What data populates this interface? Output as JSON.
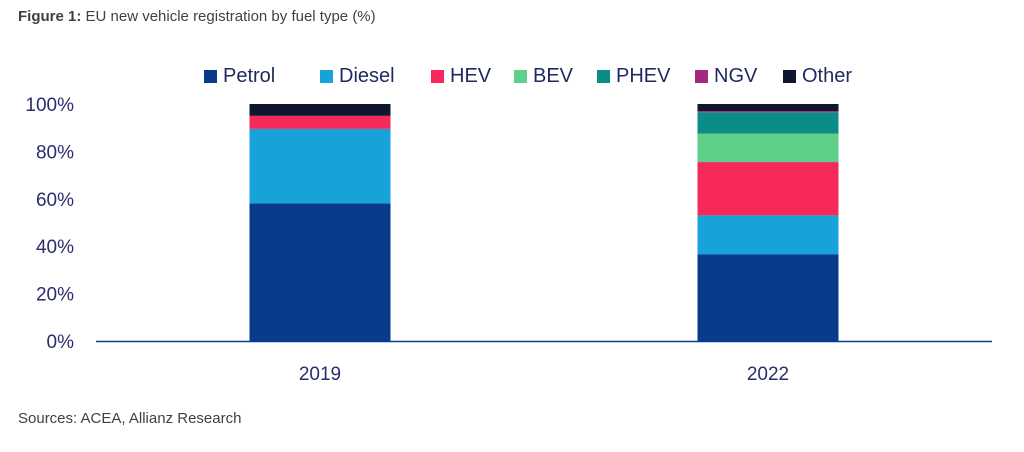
{
  "figure": {
    "label": "Figure 1:",
    "title": "EU new vehicle registration by fuel type (%)"
  },
  "source": "Sources: ACEA, Allianz Research",
  "colors": {
    "Petrol": "#0a3a8c",
    "Diesel": "#17a2d8",
    "HEV": "#f7285a",
    "BEV": "#5fcf8a",
    "PHEV": "#0b8c86",
    "NGV": "#a3287e",
    "Other": "#0f1730"
  },
  "chart_data": {
    "type": "bar",
    "stacked": true,
    "categories": [
      "2019",
      "2022"
    ],
    "series": [
      {
        "name": "Petrol",
        "values": [
          58,
          36.5
        ]
      },
      {
        "name": "Diesel",
        "values": [
          31.5,
          16.5
        ]
      },
      {
        "name": "HEV",
        "values": [
          5.5,
          22.5
        ]
      },
      {
        "name": "BEV",
        "values": [
          0,
          12
        ]
      },
      {
        "name": "PHEV",
        "values": [
          0,
          9
        ]
      },
      {
        "name": "NGV",
        "values": [
          0,
          0.5
        ]
      },
      {
        "name": "Other",
        "values": [
          5,
          3
        ]
      }
    ],
    "ylim": [
      0,
      100
    ],
    "yticks": [
      "0%",
      "20%",
      "40%",
      "60%",
      "80%",
      "100%"
    ],
    "ytick_values": [
      0,
      20,
      40,
      60,
      80,
      100
    ],
    "legend_position": "top",
    "grid": false
  }
}
